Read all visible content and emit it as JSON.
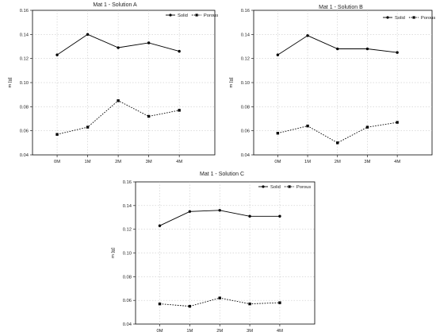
{
  "chart_data": [
    {
      "type": "line",
      "title": "Mat 1 - Solution A",
      "xlabel": "",
      "ylabel": "m [g]",
      "categories": [
        "0M",
        "1M",
        "2M",
        "3M",
        "4M"
      ],
      "ylim": [
        0.04,
        0.16
      ],
      "yticks": [
        "0.04",
        "0.06",
        "0.08",
        "0.10",
        "0.12",
        "0.14",
        "0.16"
      ],
      "grid": true,
      "legend": "top-right",
      "series": [
        {
          "name": "Solid",
          "values": [
            0.123,
            0.14,
            0.129,
            0.133,
            0.126
          ],
          "style": "solid",
          "color": "#000000"
        },
        {
          "name": "Porous",
          "values": [
            0.057,
            0.063,
            0.085,
            0.072,
            0.077
          ],
          "style": "dotted",
          "color": "#000000"
        }
      ]
    },
    {
      "type": "line",
      "title": "Mat 1 - Solution B",
      "xlabel": "",
      "ylabel": "m [g]",
      "categories": [
        "0M",
        "1M",
        "2M",
        "3M",
        "4M"
      ],
      "ylim": [
        0.04,
        0.16
      ],
      "yticks": [
        "0.04",
        "0.06",
        "0.08",
        "0.10",
        "0.12",
        "0.14",
        "0.16"
      ],
      "grid": true,
      "legend": "top-right",
      "series": [
        {
          "name": "Solid",
          "values": [
            0.123,
            0.139,
            0.128,
            0.128,
            0.125
          ],
          "style": "solid",
          "color": "#000000"
        },
        {
          "name": "Porous",
          "values": [
            0.058,
            0.064,
            0.05,
            0.063,
            0.067
          ],
          "style": "dotted",
          "color": "#000000"
        }
      ]
    },
    {
      "type": "line",
      "title": "Mat 1 - Solution C",
      "xlabel": "",
      "ylabel": "m [g]",
      "categories": [
        "0M",
        "1M",
        "2M",
        "3M",
        "4M"
      ],
      "ylim": [
        0.04,
        0.16
      ],
      "yticks": [
        "0.04",
        "0.06",
        "0.08",
        "0.10",
        "0.12",
        "0.14",
        "0.16"
      ],
      "grid": true,
      "legend": "top-right",
      "series": [
        {
          "name": "Solid",
          "values": [
            0.123,
            0.135,
            0.136,
            0.131,
            0.131
          ],
          "style": "solid",
          "color": "#000000"
        },
        {
          "name": "Porous",
          "values": [
            0.057,
            0.055,
            0.062,
            0.057,
            0.058
          ],
          "style": "dotted",
          "color": "#000000"
        }
      ]
    }
  ]
}
